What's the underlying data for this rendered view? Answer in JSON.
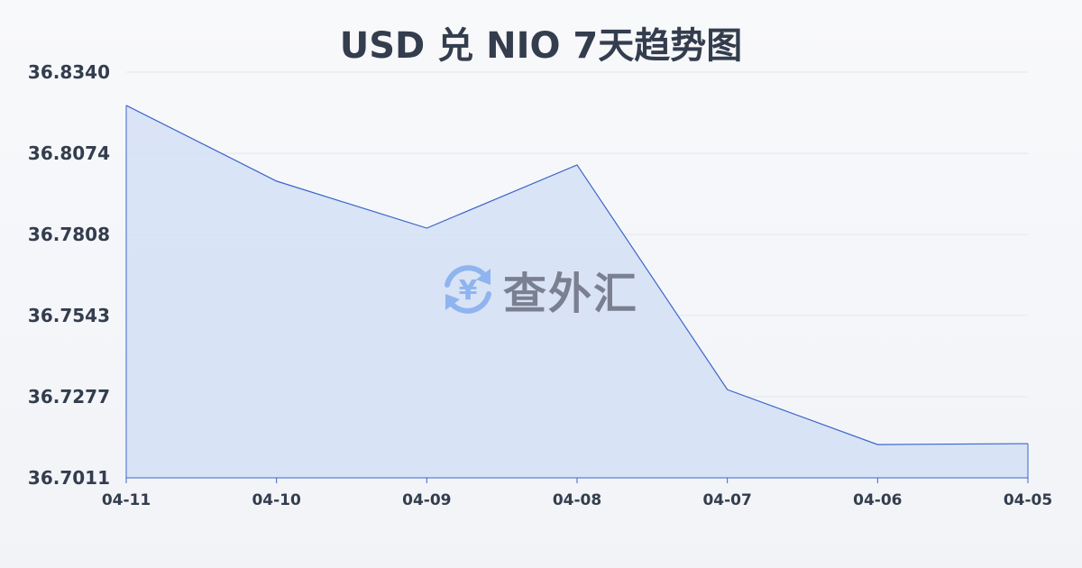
{
  "title": "USD 兑 NIO 7天趋势图",
  "watermark": {
    "text": "查外汇",
    "icon": "yen-exchange-icon",
    "icon_symbol": "¥"
  },
  "colors": {
    "line": "#3a66c9",
    "fill": "#d6e1f5",
    "grid": "#e3e6ec",
    "text": "#333d4d",
    "watermark_icon": "#8fb4ef"
  },
  "chart_data": {
    "type": "area",
    "title": "USD 兑 NIO 7天趋势图",
    "categories": [
      "04-11",
      "04-10",
      "04-09",
      "04-08",
      "04-07",
      "04-06",
      "04-05"
    ],
    "values": [
      36.8231,
      36.7983,
      36.7829,
      36.8036,
      36.73,
      36.712,
      36.7123
    ],
    "yticks": [
      "36.8340",
      "36.8074",
      "36.7808",
      "36.7543",
      "36.7277",
      "36.7011"
    ],
    "ylim": [
      36.7011,
      36.834
    ],
    "grid": true,
    "legend": "none"
  }
}
